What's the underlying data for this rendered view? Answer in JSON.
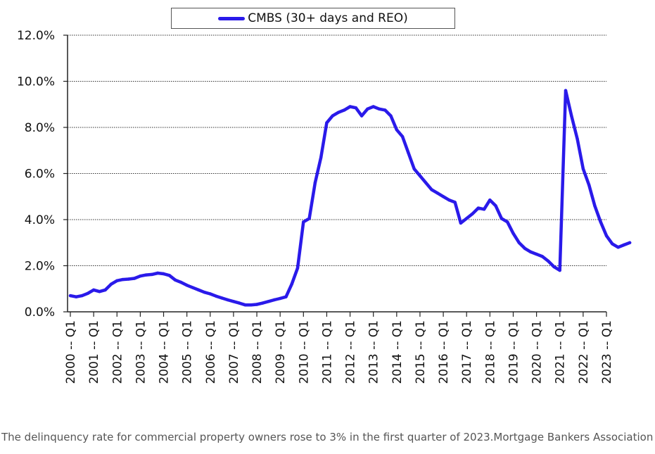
{
  "chart_data": {
    "type": "line",
    "title": "",
    "xlabel": "",
    "ylabel": "",
    "ylim": [
      0,
      12
    ],
    "y_ticks": [
      "0.0%",
      "2.0%",
      "4.0%",
      "6.0%",
      "8.0%",
      "10.0%",
      "12.0%"
    ],
    "x_ticks": [
      "2000 -- Q1",
      "2001 -- Q1",
      "2002 -- Q1",
      "2003 -- Q1",
      "2004 -- Q1",
      "2005 -- Q1",
      "2006 -- Q1",
      "2007 -- Q1",
      "2008 -- Q1",
      "2009 -- Q1",
      "2010 -- Q1",
      "2011 -- Q1",
      "2012 -- Q1",
      "2013 -- Q1",
      "2014 -- Q1",
      "2015 -- Q1",
      "2016 -- Q1",
      "2017 -- Q1",
      "2018 -- Q1",
      "2019 -- Q1",
      "2020 -- Q1",
      "2021 -- Q1",
      "2022 -- Q1",
      "2023 -- Q1"
    ],
    "grid": "horizontal dotted",
    "legend_position": "top-center",
    "series": [
      {
        "name": "CMBS (30+ days and REO)",
        "color": "#2a1aea",
        "values": [
          0.7,
          0.65,
          0.7,
          0.8,
          0.95,
          0.88,
          0.95,
          1.2,
          1.35,
          1.4,
          1.42,
          1.45,
          1.55,
          1.6,
          1.62,
          1.68,
          1.65,
          1.58,
          1.38,
          1.28,
          1.15,
          1.05,
          0.95,
          0.85,
          0.78,
          0.68,
          0.6,
          0.52,
          0.45,
          0.38,
          0.3,
          0.3,
          0.32,
          0.38,
          0.45,
          0.52,
          0.58,
          0.65,
          1.2,
          1.9,
          3.9,
          4.05,
          5.6,
          6.7,
          8.2,
          8.5,
          8.65,
          8.75,
          8.9,
          8.85,
          8.5,
          8.8,
          8.9,
          8.8,
          8.75,
          8.5,
          7.9,
          7.6,
          6.9,
          6.2,
          5.9,
          5.6,
          5.3,
          5.15,
          5.0,
          4.85,
          4.75,
          3.85,
          4.05,
          4.25,
          4.5,
          4.45,
          4.85,
          4.6,
          4.05,
          3.9,
          3.4,
          3.0,
          2.75,
          2.6,
          2.5,
          2.4,
          2.2,
          1.95,
          1.8,
          9.6,
          8.5,
          7.5,
          6.2,
          5.5,
          4.6,
          3.9,
          3.3,
          2.95,
          2.8,
          2.9,
          3.0
        ]
      }
    ]
  },
  "caption": "The delinquency rate for commercial property owners rose to 3% in the first quarter of 2023.Mortgage Bankers Association"
}
